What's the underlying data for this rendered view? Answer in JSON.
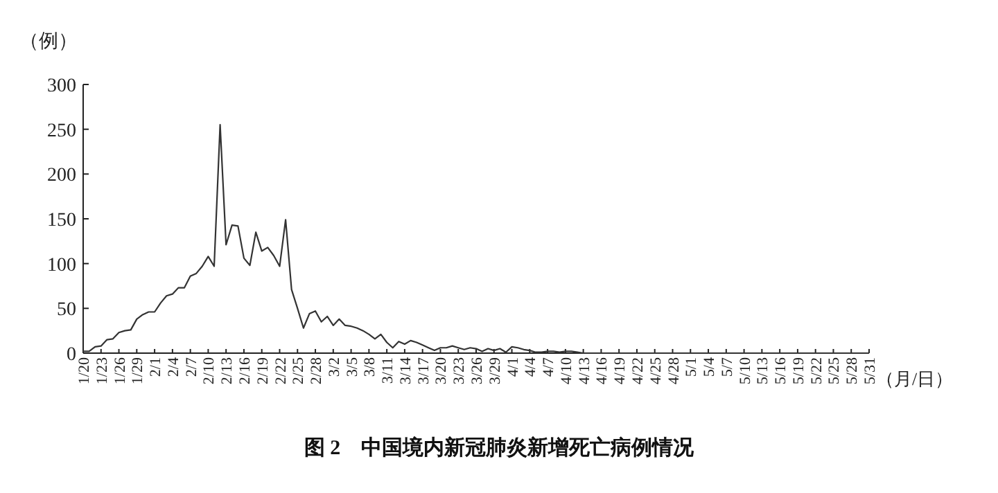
{
  "chart_data": {
    "type": "line",
    "title": "图 2　中国境内新冠肺炎新增死亡病例情况",
    "ylabel": "（例）",
    "xlabel": "（月/日）",
    "color": "#333333",
    "x": [
      "--01-20",
      "--01-21",
      "--01-22",
      "--01-23",
      "--01-24",
      "--01-25",
      "--01-26",
      "--01-27",
      "--01-28",
      "--01-29",
      "--01-30",
      "--01-31",
      "--02-01",
      "--02-02",
      "--02-03",
      "--02-04",
      "--02-05",
      "--02-06",
      "--02-07",
      "--02-08",
      "--02-09",
      "--02-10",
      "--02-11",
      "--02-12",
      "--02-13",
      "--02-14",
      "--02-15",
      "--02-16",
      "--02-17",
      "--02-18",
      "--02-19",
      "--02-20",
      "--02-21",
      "--02-22",
      "--02-23",
      "--02-24",
      "--02-25",
      "--02-26",
      "--02-27",
      "--02-28",
      "--02-29",
      "--03-01",
      "--03-02",
      "--03-03",
      "--03-04",
      "--03-05",
      "--03-06",
      "--03-07",
      "--03-08",
      "--03-09",
      "--03-10",
      "--03-11",
      "--03-12",
      "--03-13",
      "--03-14",
      "--03-15",
      "--03-16",
      "--03-17",
      "--03-18",
      "--03-19",
      "--03-20",
      "--03-21",
      "--03-22",
      "--03-23",
      "--03-24",
      "--03-25",
      "--03-26",
      "--03-27",
      "--03-28",
      "--03-29",
      "--03-30",
      "--03-31",
      "--04-01",
      "--04-02",
      "--04-03",
      "--04-04",
      "--04-05",
      "--04-06",
      "--04-07",
      "--04-08",
      "--04-09",
      "--04-10",
      "--04-11",
      "--04-12",
      "--04-13",
      "--04-14",
      "--04-15",
      "--04-16",
      "--04-17",
      "--04-18",
      "--04-19",
      "--04-20",
      "--04-21",
      "--04-22",
      "--04-23",
      "--04-24",
      "--04-25",
      "--04-26",
      "--04-27",
      "--04-28",
      "--04-29",
      "--04-30",
      "--05-01",
      "--05-02",
      "--05-03",
      "--05-04",
      "--05-05",
      "--05-06",
      "--05-07",
      "--05-08",
      "--05-09",
      "--05-10",
      "--05-11",
      "--05-12",
      "--05-13",
      "--05-14",
      "--05-15",
      "--05-16",
      "--05-17",
      "--05-18",
      "--05-19",
      "--05-20",
      "--05-21",
      "--05-22",
      "--05-23",
      "--05-24",
      "--05-25",
      "--05-26",
      "--05-27",
      "--05-28",
      "--05-29",
      "--05-30",
      "--05-31"
    ],
    "values": [
      2,
      2,
      7,
      8,
      15,
      16,
      23,
      25,
      26,
      38,
      43,
      46,
      46,
      56,
      64,
      66,
      73,
      73,
      86,
      89,
      97,
      108,
      97,
      255,
      121,
      143,
      142,
      106,
      98,
      135,
      114,
      118,
      109,
      97,
      149,
      71,
      50,
      28,
      44,
      47,
      35,
      41,
      31,
      38,
      31,
      30,
      28,
      25,
      21,
      16,
      21,
      12,
      6,
      13,
      10,
      14,
      12,
      9,
      6,
      3,
      6,
      6,
      8,
      6,
      4,
      6,
      5,
      2,
      5,
      3,
      5,
      1,
      7,
      6,
      4,
      3,
      1,
      1,
      2,
      2,
      1,
      2,
      2,
      1,
      0,
      0,
      0,
      0,
      0,
      0,
      0,
      0,
      0,
      0,
      0,
      0,
      0,
      0,
      0,
      0,
      0,
      0,
      0,
      0,
      0,
      0,
      0,
      0,
      0,
      0,
      0,
      0,
      0,
      0,
      0,
      0,
      0,
      0,
      0,
      0,
      0,
      0,
      0,
      0,
      0,
      0,
      0,
      0,
      0,
      0,
      0,
      0,
      0
    ],
    "xlim": [
      "--01-20",
      "--05-31"
    ],
    "ylim": [
      0,
      300
    ],
    "yticks": [
      0,
      50,
      100,
      150,
      200,
      250,
      300
    ],
    "xticks": [
      {
        "value": "--01-20",
        "label": "1/20"
      },
      {
        "value": "--01-23",
        "label": "1/23"
      },
      {
        "value": "--01-26",
        "label": "1/26"
      },
      {
        "value": "--01-29",
        "label": "1/29"
      },
      {
        "value": "--02-01",
        "label": "2/1"
      },
      {
        "value": "--02-04",
        "label": "2/4"
      },
      {
        "value": "--02-07",
        "label": "2/7"
      },
      {
        "value": "--02-10",
        "label": "2/10"
      },
      {
        "value": "--02-13",
        "label": "2/13"
      },
      {
        "value": "--02-16",
        "label": "2/16"
      },
      {
        "value": "--02-19",
        "label": "2/19"
      },
      {
        "value": "--02-22",
        "label": "2/22"
      },
      {
        "value": "--02-25",
        "label": "2/25"
      },
      {
        "value": "--02-28",
        "label": "2/28"
      },
      {
        "value": "--03-02",
        "label": "3/2"
      },
      {
        "value": "--03-05",
        "label": "3/5"
      },
      {
        "value": "--03-08",
        "label": "3/8"
      },
      {
        "value": "--03-11",
        "label": "3/11"
      },
      {
        "value": "--03-14",
        "label": "3/14"
      },
      {
        "value": "--03-17",
        "label": "3/17"
      },
      {
        "value": "--03-20",
        "label": "3/20"
      },
      {
        "value": "--03-23",
        "label": "3/23"
      },
      {
        "value": "--03-26",
        "label": "3/26"
      },
      {
        "value": "--03-29",
        "label": "3/29"
      },
      {
        "value": "--04-01",
        "label": "4/1"
      },
      {
        "value": "--04-04",
        "label": "4/4"
      },
      {
        "value": "--04-07",
        "label": "4/7"
      },
      {
        "value": "--04-10",
        "label": "4/10"
      },
      {
        "value": "--04-13",
        "label": "4/13"
      },
      {
        "value": "--04-16",
        "label": "4/16"
      },
      {
        "value": "--04-19",
        "label": "4/19"
      },
      {
        "value": "--04-22",
        "label": "4/22"
      },
      {
        "value": "--04-25",
        "label": "4/25"
      },
      {
        "value": "--04-28",
        "label": "4/28"
      },
      {
        "value": "--05-01",
        "label": "5/1"
      },
      {
        "value": "--05-04",
        "label": "5/4"
      },
      {
        "value": "--05-07",
        "label": "5/7"
      },
      {
        "value": "--05-10",
        "label": "5/10"
      },
      {
        "value": "--05-13",
        "label": "5/13"
      },
      {
        "value": "--05-16",
        "label": "5/16"
      },
      {
        "value": "--05-19",
        "label": "5/19"
      },
      {
        "value": "--05-22",
        "label": "5/22"
      },
      {
        "value": "--05-25",
        "label": "5/25"
      },
      {
        "value": "--05-28",
        "label": "5/28"
      },
      {
        "value": "--05-31",
        "label": "5/31"
      }
    ]
  }
}
